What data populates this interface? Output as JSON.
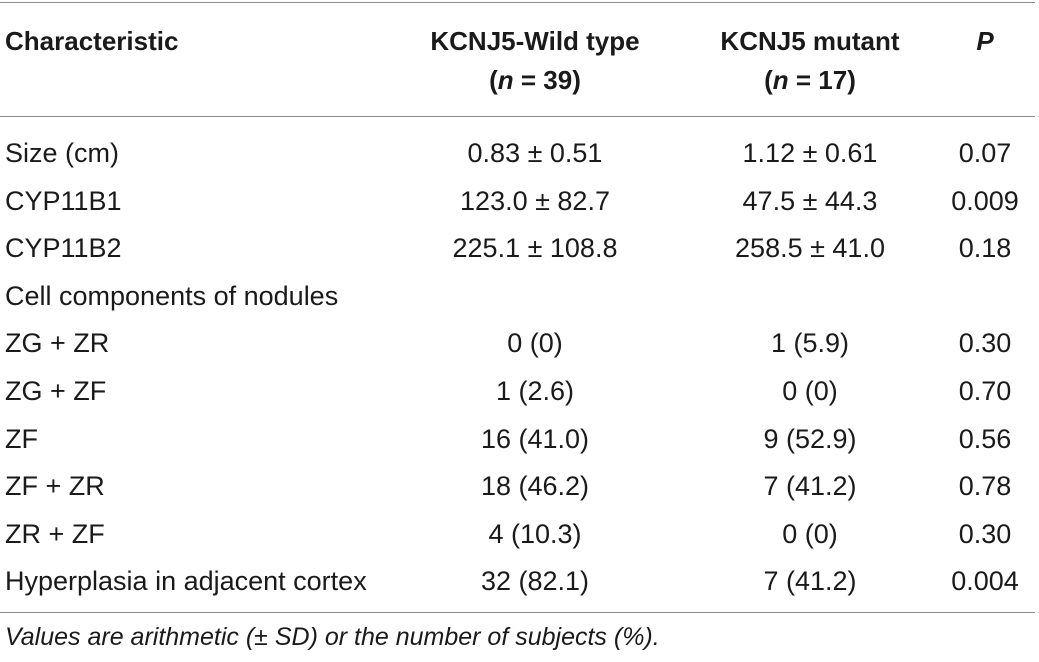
{
  "header": {
    "characteristic": "Characteristic",
    "wild_type_line1": "KCNJ5-Wild type",
    "wild_type_n_label": "n",
    "wild_type_n_value": " = 39)",
    "mutant_line1": "KCNJ5 mutant",
    "mutant_n_label": "n",
    "mutant_n_value": " = 17)",
    "p": "P"
  },
  "rows": [
    {
      "label": "Size (cm)",
      "wild": "0.83 ± 0.51",
      "mutant": "1.12 ± 0.61",
      "p": "0.07"
    },
    {
      "label": "CYP11B1",
      "wild": "123.0 ± 82.7",
      "mutant": "47.5 ± 44.3",
      "p": "0.009"
    },
    {
      "label": "CYP11B2",
      "wild": "225.1 ± 108.8",
      "mutant": "258.5 ± 41.0",
      "p": "0.18"
    },
    {
      "label": "Cell components of nodules",
      "wild": "",
      "mutant": "",
      "p": ""
    },
    {
      "label": "ZG + ZR",
      "wild": "0 (0)",
      "mutant": "1 (5.9)",
      "p": "0.30"
    },
    {
      "label": "ZG + ZF",
      "wild": "1 (2.6)",
      "mutant": "0 (0)",
      "p": "0.70"
    },
    {
      "label": "ZF",
      "wild": "16 (41.0)",
      "mutant": "9 (52.9)",
      "p": "0.56"
    },
    {
      "label": "ZF + ZR",
      "wild": "18 (46.2)",
      "mutant": "7 (41.2)",
      "p": "0.78"
    },
    {
      "label": "ZR + ZF",
      "wild": "4 (10.3)",
      "mutant": "0 (0)",
      "p": "0.30"
    },
    {
      "label": "Hyperplasia in adjacent cortex",
      "wild": "32 (82.1)",
      "mutant": "7 (41.2)",
      "p": "0.004"
    }
  ],
  "footnote": "Values are arithmetic (± SD) or the number of subjects (%)."
}
